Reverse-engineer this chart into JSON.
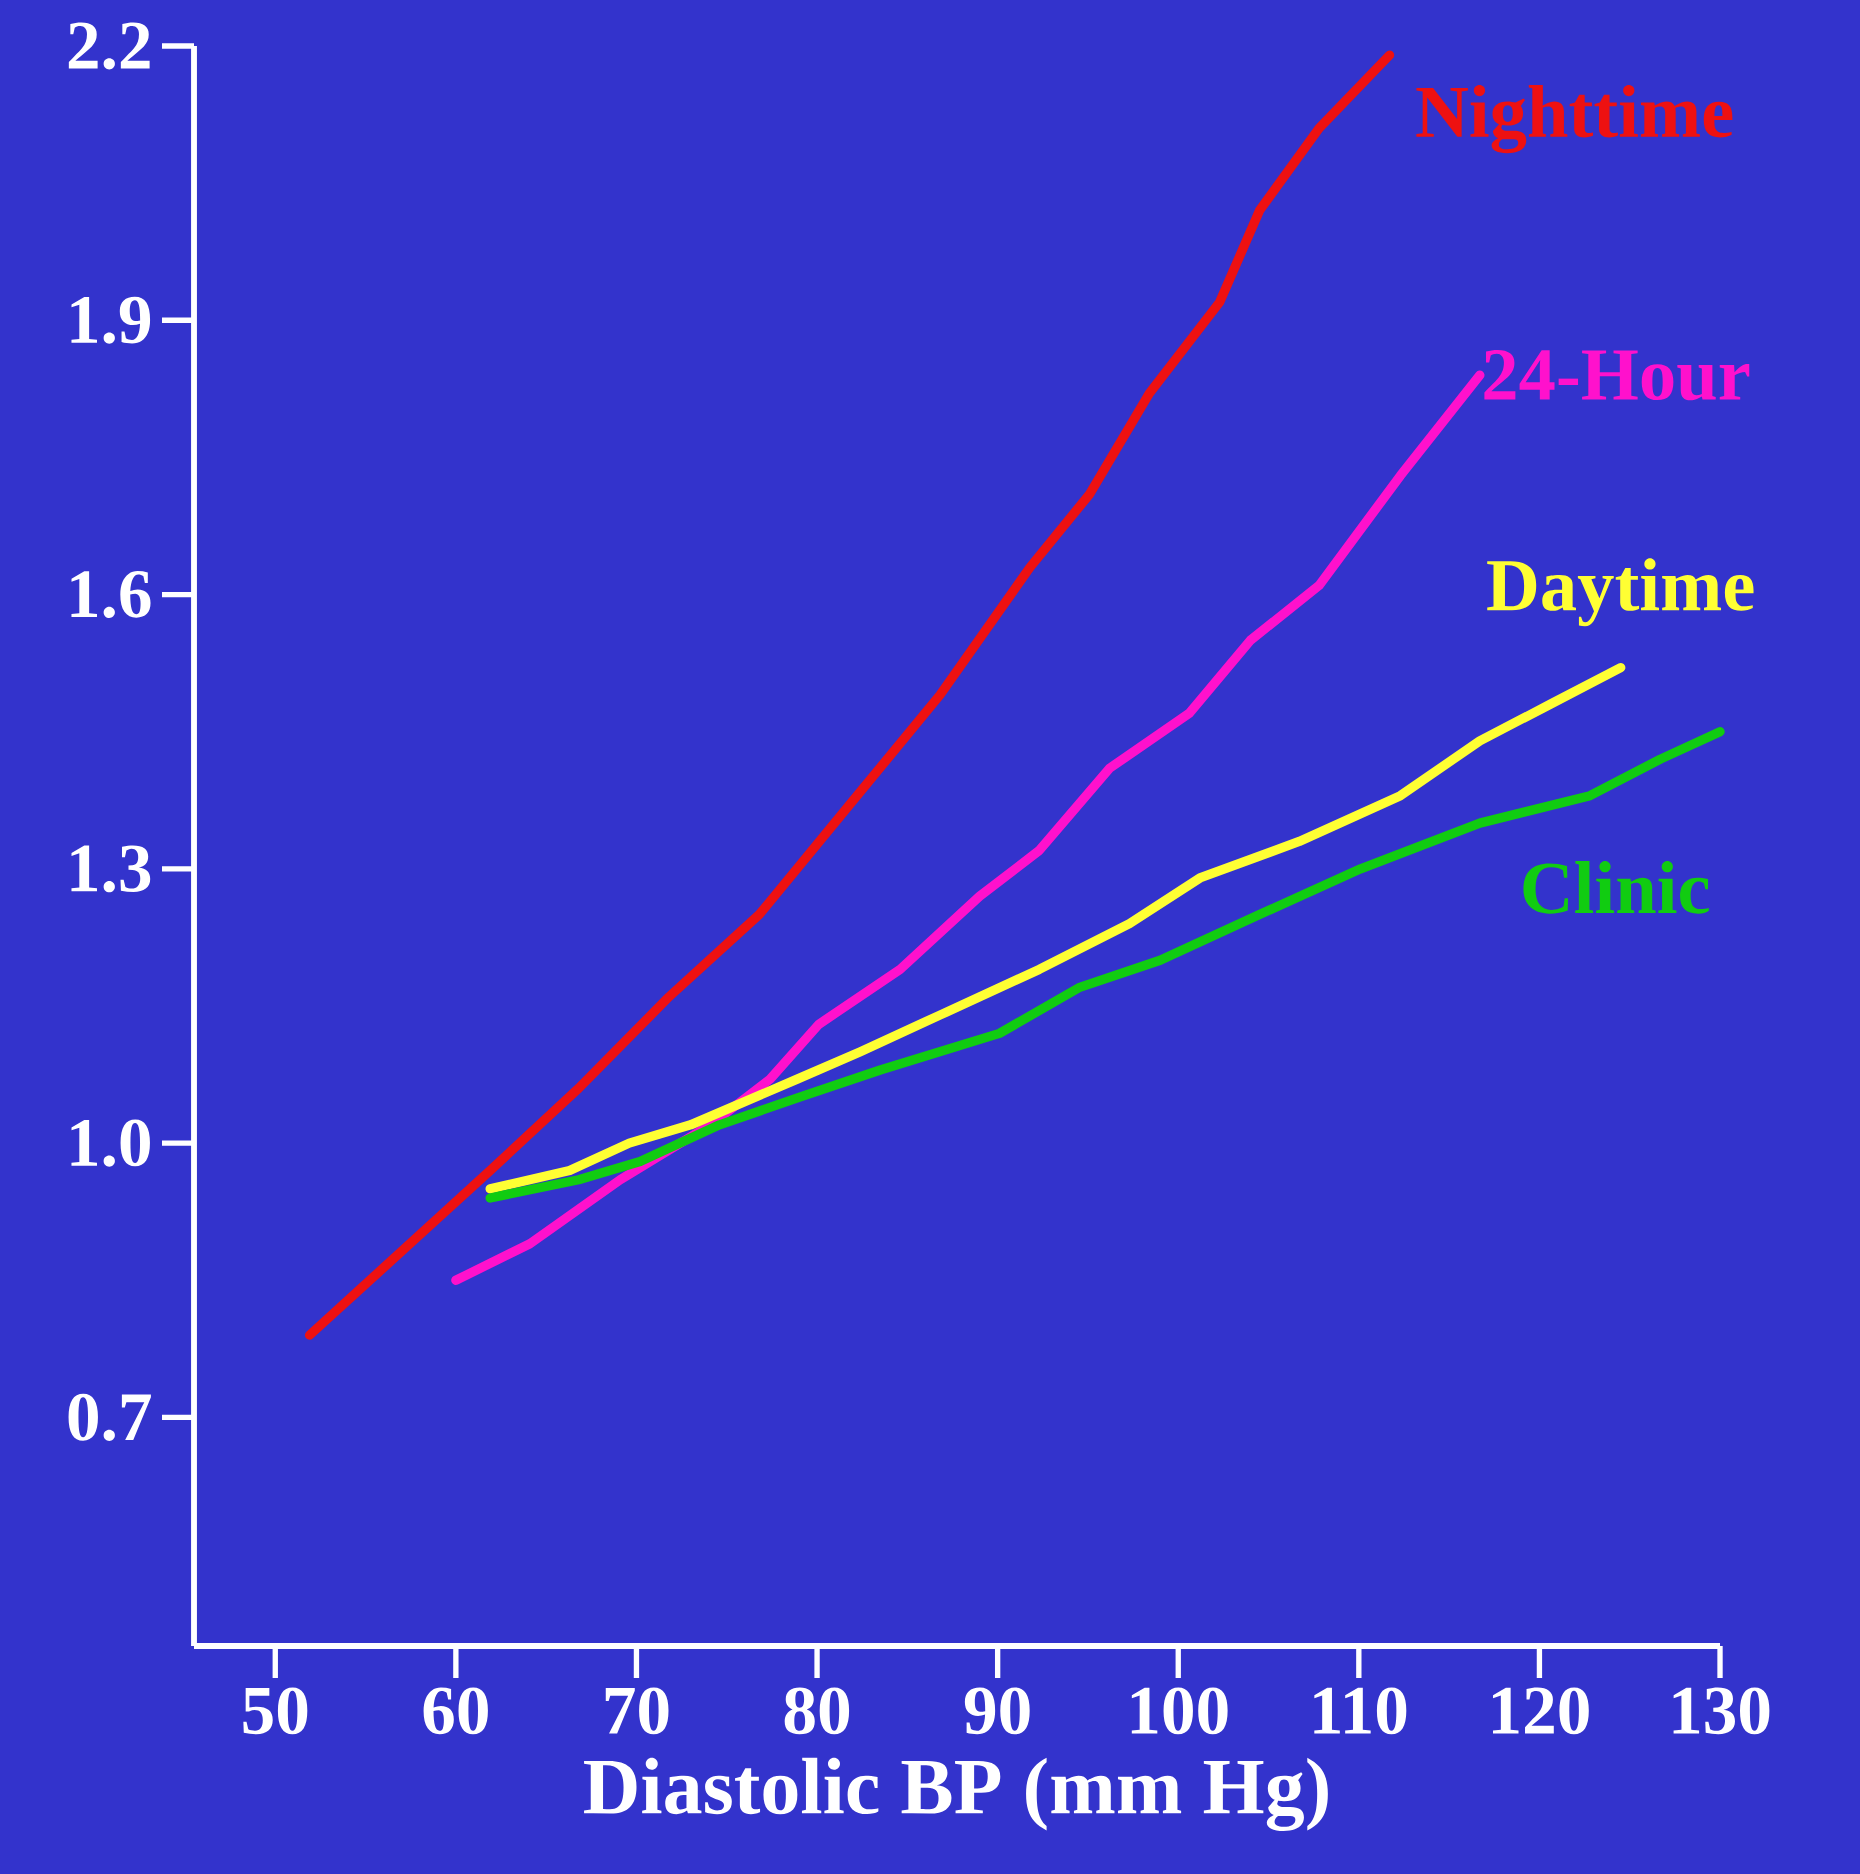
{
  "chart_data": {
    "type": "line",
    "xlabel": "Diastolic BP (mm Hg)",
    "xlim": [
      45.5,
      130
    ],
    "ylim": [
      0.45,
      2.2
    ],
    "xticks": [
      50,
      60,
      70,
      80,
      90,
      100,
      110,
      120,
      130
    ],
    "yticks": [
      {
        "value": 0.7,
        "label": "0.7"
      },
      {
        "value": 1.0,
        "label": "1.0"
      },
      {
        "value": 1.3,
        "label": "1.3"
      },
      {
        "value": 1.6,
        "label": "1.6"
      },
      {
        "value": 1.9,
        "label": "1.9"
      },
      {
        "value": 2.2,
        "label": "2.2"
      }
    ],
    "grid": false,
    "legend": false,
    "marker": "none",
    "line_style": "solid",
    "series": [
      {
        "name": "Nighttime",
        "color": "#ee1111",
        "x": [
          51.9,
          56.9,
          61.9,
          66.8,
          71.8,
          76.8,
          81.8,
          86.8,
          91.8,
          95.1,
          98.4,
          102.3,
          104.5,
          107.8,
          111.7
        ],
        "values": [
          0.79,
          0.88,
          0.97,
          1.06,
          1.16,
          1.25,
          1.37,
          1.49,
          1.63,
          1.71,
          1.82,
          1.92,
          2.02,
          2.11,
          2.19
        ]
      },
      {
        "name": "24-Hour",
        "color": "#ff11cc",
        "x": [
          60,
          64.1,
          69.1,
          74.1,
          77.4,
          80.1,
          84.6,
          89,
          92.3,
          96.2,
          100.6,
          104,
          107.8,
          112.3,
          116.7
        ],
        "values": [
          0.85,
          0.89,
          0.96,
          1.02,
          1.07,
          1.13,
          1.19,
          1.27,
          1.32,
          1.41,
          1.47,
          1.55,
          1.61,
          1.73,
          1.84
        ]
      },
      {
        "name": "Daytime",
        "color": "#ffff33",
        "x": [
          61.9,
          66.3,
          69.6,
          73,
          78.9,
          82.4,
          86.8,
          92.3,
          97.3,
          101.2,
          106.7,
          112.3,
          116.7,
          120.6,
          124.5
        ],
        "values": [
          0.95,
          0.97,
          1.0,
          1.02,
          1.07,
          1.1,
          1.14,
          1.19,
          1.24,
          1.29,
          1.33,
          1.38,
          1.44,
          1.48,
          1.52
        ]
      },
      {
        "name": "Clinic",
        "color": "#11cc11",
        "x": [
          61.9,
          66.8,
          70.2,
          74.6,
          79,
          83.5,
          90.1,
          94.5,
          99,
          104.5,
          110.1,
          116.7,
          122.8,
          126.7,
          130
        ],
        "values": [
          0.94,
          0.96,
          0.98,
          1.02,
          1.05,
          1.08,
          1.12,
          1.17,
          1.2,
          1.25,
          1.3,
          1.35,
          1.38,
          1.42,
          1.45
        ]
      }
    ]
  }
}
